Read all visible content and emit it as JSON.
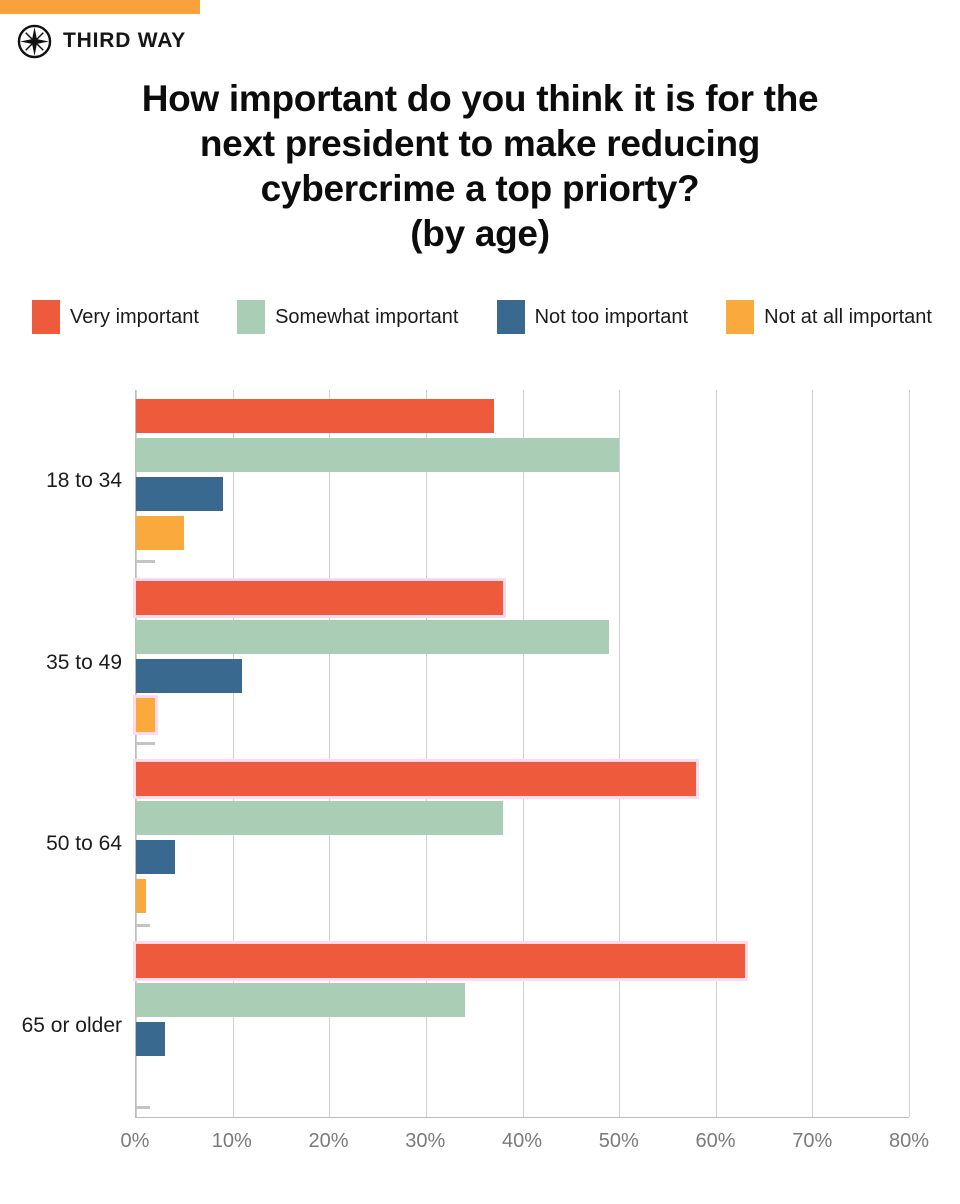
{
  "brand": {
    "name": "THIRD WAY"
  },
  "title": {
    "lines": [
      "How important do you think it is for the",
      "next president to make reducing",
      "cybercrime a top priorty?",
      "(by age)"
    ]
  },
  "colors": {
    "accent_bar": "#F9A13A",
    "grid": "#CFCFCF",
    "axis": "#BDBDBD",
    "tick_text": "#7A7A7A",
    "pink_outline": "#FFD9EC",
    "category_text": "#1C1C1C"
  },
  "chart_data": {
    "type": "bar",
    "orientation": "horizontal",
    "title": "How important do you think it is for the next president to make reducing cybercrime a top priorty? (by age)",
    "categories": [
      "18 to 34",
      "35 to 49",
      "50 to 64",
      "65 or older"
    ],
    "series": [
      {
        "name": "Very important",
        "color": "#EE5B3C",
        "in_legend": true,
        "values": [
          37,
          38,
          58,
          63
        ]
      },
      {
        "name": "Somewhat important",
        "color": "#A9CDB5",
        "in_legend": true,
        "values": [
          50,
          49,
          38,
          34
        ]
      },
      {
        "name": "Not too important",
        "color": "#3A698F",
        "in_legend": true,
        "values": [
          9,
          11,
          4,
          3
        ]
      },
      {
        "name": "Not at all important",
        "color": "#FAA93C",
        "in_legend": true,
        "values": [
          5,
          2,
          1,
          0
        ]
      },
      {
        "name": "",
        "color": "#C4C4C4",
        "in_legend": false,
        "thin": true,
        "values": [
          2,
          2,
          1.5,
          1.5
        ]
      }
    ],
    "x_ticks": [
      "0%",
      "10%",
      "20%",
      "30%",
      "40%",
      "50%",
      "60%",
      "70%",
      "80%"
    ],
    "xlim": [
      0,
      80
    ],
    "grid": true,
    "legend_position": "top",
    "pink_outline_bars": [
      {
        "category": 1,
        "series": 0
      },
      {
        "category": 1,
        "series": 3
      },
      {
        "category": 2,
        "series": 0
      },
      {
        "category": 3,
        "series": 0
      }
    ]
  }
}
